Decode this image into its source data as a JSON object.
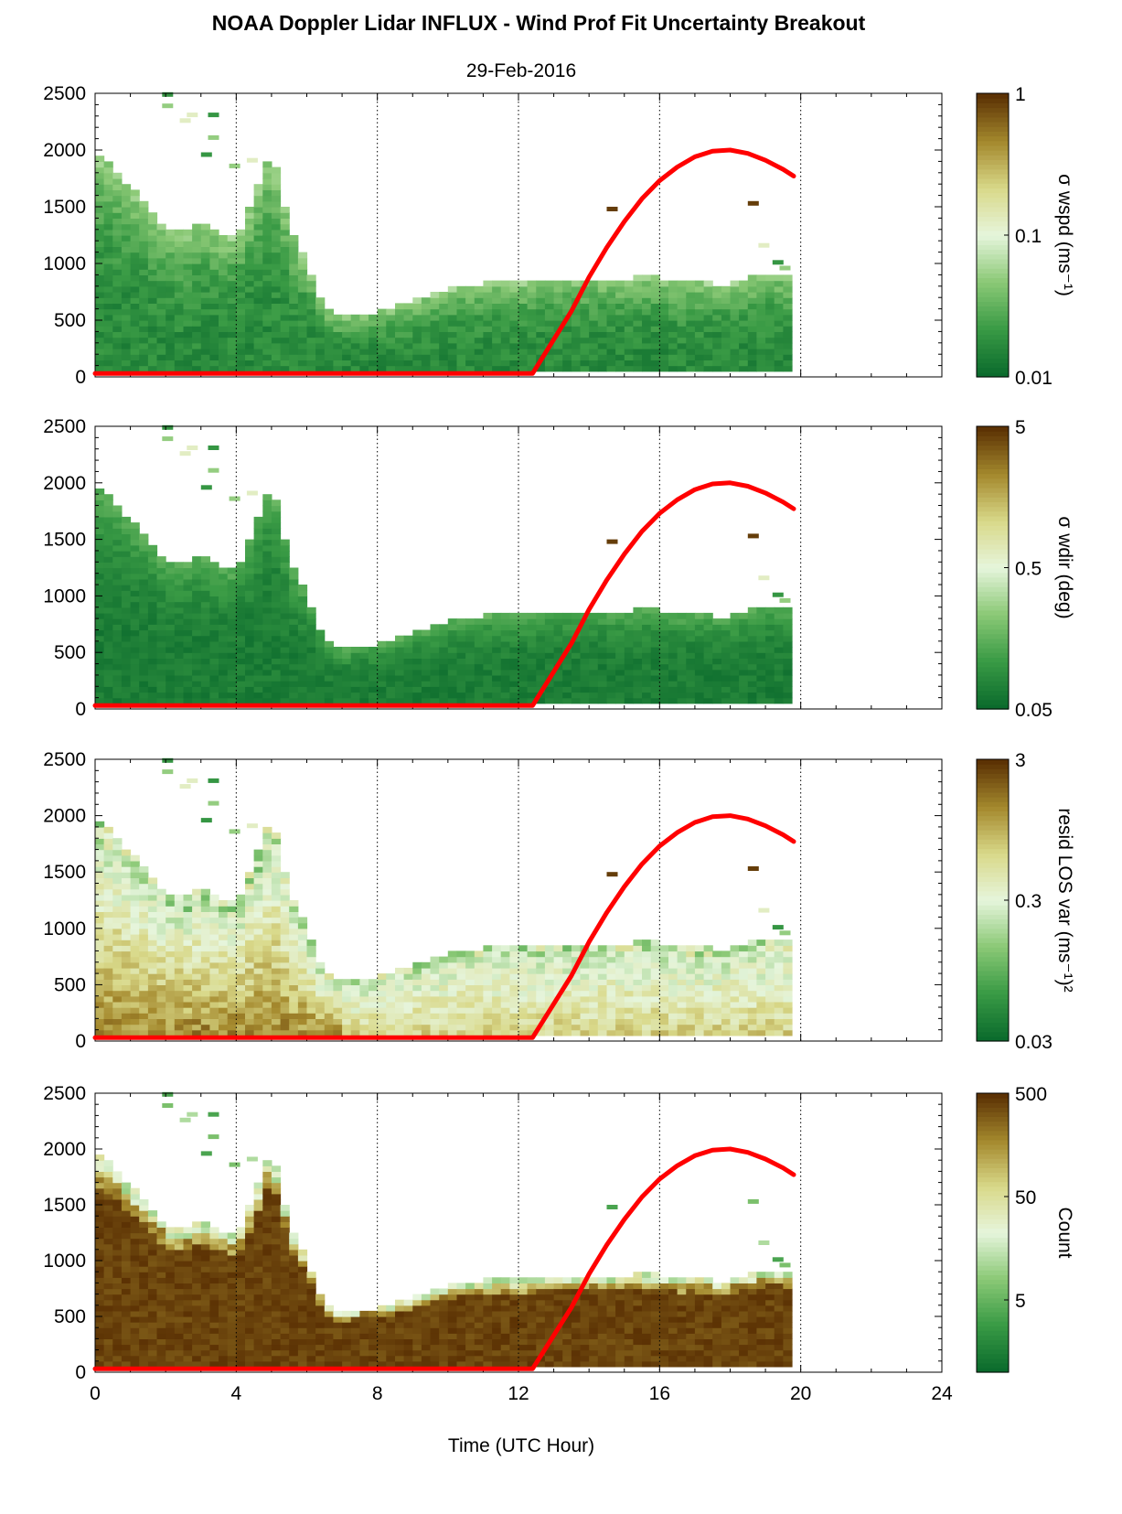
{
  "figure": {
    "title": "NOAA Doppler Lidar INFLUX - Wind Prof Fit Uncertainty Breakout",
    "subtitle": "29-Feb-2016",
    "xlabel": "Time (UTC Hour)"
  },
  "colors": {
    "sun_curve": "#ff0000",
    "colormap": [
      "#0b6b2d",
      "#3a9b45",
      "#8bc976",
      "#e6f5dc",
      "#d9d98a",
      "#a58a2e",
      "#5c3204"
    ]
  },
  "chart_data": [
    {
      "type": "heatmap",
      "name": "sigma-wspd",
      "colorbar_label": "σ wspd (ms⁻¹)",
      "colorbar_scale": "log",
      "colorbar_ticks": [
        "0.01",
        "0.1",
        "1"
      ],
      "clim": [
        0.01,
        1
      ],
      "x_range": [
        0,
        24
      ],
      "y_range": [
        0,
        2500
      ],
      "x_ticks": [
        0,
        4,
        8,
        12,
        16,
        20,
        24
      ],
      "y_ticks": [
        0,
        500,
        1000,
        1500,
        2000,
        2500
      ],
      "grid_x_dotted": true
    },
    {
      "type": "heatmap",
      "name": "sigma-wdir",
      "colorbar_label": "σ wdir (deg)",
      "colorbar_scale": "log",
      "colorbar_ticks": [
        "0.05",
        "0.5",
        "5"
      ],
      "clim": [
        0.05,
        5
      ],
      "x_range": [
        0,
        24
      ],
      "y_range": [
        0,
        2500
      ],
      "x_ticks": [
        0,
        4,
        8,
        12,
        16,
        20,
        24
      ],
      "y_ticks": [
        0,
        500,
        1000,
        1500,
        2000,
        2500
      ],
      "grid_x_dotted": true
    },
    {
      "type": "heatmap",
      "name": "resid-los-var",
      "colorbar_label": "resid LOS var (ms⁻¹)²",
      "colorbar_scale": "log",
      "colorbar_ticks": [
        "0.03",
        "0.3",
        "3"
      ],
      "clim": [
        0.03,
        3
      ],
      "x_range": [
        0,
        24
      ],
      "y_range": [
        0,
        2500
      ],
      "x_ticks": [
        0,
        4,
        8,
        12,
        16,
        20,
        24
      ],
      "y_ticks": [
        0,
        500,
        1000,
        1500,
        2000,
        2500
      ],
      "grid_x_dotted": true
    },
    {
      "type": "heatmap",
      "name": "count",
      "colorbar_label": "Count",
      "colorbar_scale": "log",
      "colorbar_ticks": [
        "5",
        "50",
        "500"
      ],
      "clim": [
        1,
        500
      ],
      "x_range": [
        0,
        24
      ],
      "y_range": [
        0,
        2500
      ],
      "x_ticks": [
        0,
        4,
        8,
        12,
        16,
        20,
        24
      ],
      "y_ticks": [
        0,
        500,
        1000,
        1500,
        2000,
        2500
      ],
      "grid_x_dotted": true
    }
  ],
  "data_top_profile": {
    "x": [
      0,
      0.5,
      1,
      1.5,
      2,
      2.5,
      3,
      3.5,
      4,
      4.5,
      5,
      5.5,
      6,
      6.5,
      7,
      7.5,
      8,
      8.5,
      9,
      9.5,
      10,
      10.5,
      11,
      11.5,
      12,
      12.5,
      13,
      13.5,
      14,
      14.5,
      15,
      15.5,
      16,
      16.5,
      17,
      17.5,
      18,
      18.5,
      19,
      19.5,
      19.75
    ],
    "y": [
      1950,
      1850,
      1650,
      1500,
      1300,
      1250,
      1350,
      1250,
      1200,
      1550,
      2000,
      1300,
      1000,
      600,
      500,
      550,
      550,
      600,
      650,
      700,
      750,
      800,
      800,
      820,
      800,
      820,
      850,
      850,
      850,
      850,
      840,
      860,
      860,
      820,
      830,
      800,
      800,
      850,
      880,
      900,
      850
    ]
  },
  "sun_elevation_curve": {
    "x": [
      0,
      12.4,
      13,
      13.5,
      14,
      14.5,
      15,
      15.5,
      16,
      16.5,
      17,
      17.5,
      18,
      18.5,
      19,
      19.5,
      19.8
    ],
    "y": [
      30,
      30,
      330,
      580,
      880,
      1140,
      1370,
      1570,
      1730,
      1850,
      1940,
      1990,
      2000,
      1970,
      1910,
      1830,
      1770
    ]
  }
}
